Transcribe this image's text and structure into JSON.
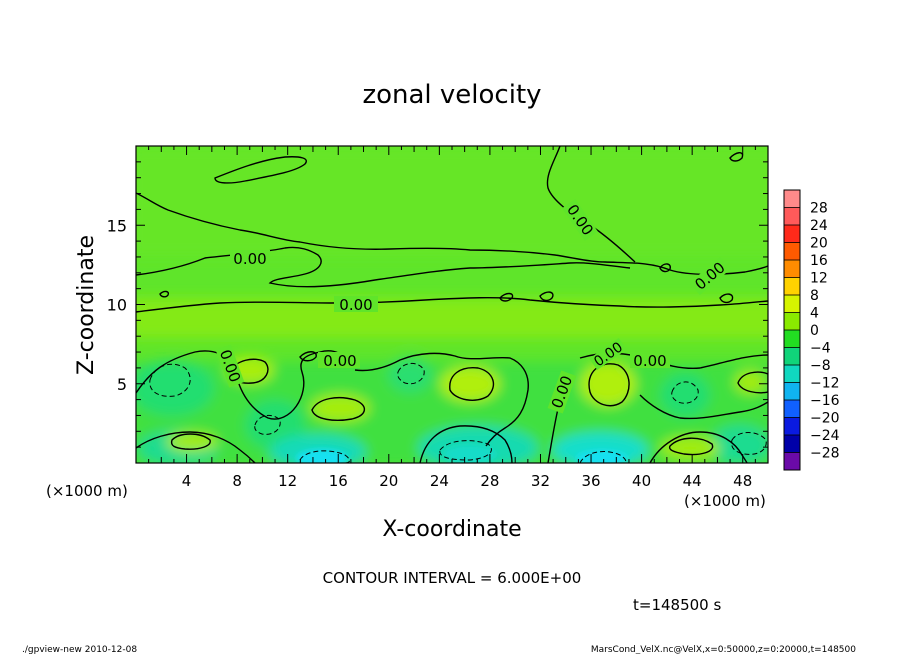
{
  "chart_data": {
    "type": "heatmap",
    "title": "zonal velocity",
    "xlabel": "X-coordinate",
    "ylabel": "Z-coordinate",
    "x_unit_left": "(×1000 m)",
    "x_unit_right": "(×1000 m)",
    "xlim": [
      0,
      50
    ],
    "ylim": [
      0,
      20
    ],
    "x_ticks": [
      "4",
      "8",
      "12",
      "16",
      "20",
      "24",
      "28",
      "32",
      "36",
      "40",
      "44",
      "48"
    ],
    "y_ticks": [
      "5",
      "10",
      "15"
    ],
    "contour_interval_text": "CONTOUR INTERVAL = 6.000E+00",
    "contour_labels": [
      "0.00",
      "0.00",
      "0.00",
      "0.00",
      "0.00",
      "0.00",
      "0.00",
      "0.00",
      "0.00"
    ],
    "time_text": "t=148500 s",
    "colorbar": {
      "labels": [
        "28",
        "24",
        "20",
        "16",
        "12",
        "8",
        "4",
        "0",
        "−4",
        "−8",
        "−12",
        "−16",
        "−20",
        "−24",
        "−28"
      ],
      "colors": [
        "#ff8a8a",
        "#ff5a5a",
        "#ff2a1a",
        "#ff5a00",
        "#ff8c00",
        "#ffd200",
        "#d6f400",
        "#8aea00",
        "#22dd22",
        "#10d47a",
        "#10d8c0",
        "#10b4f0",
        "#1060ff",
        "#0a1ae0",
        "#0000a8",
        "#6a0aa8"
      ]
    },
    "field_colors": {
      "strong_positive": "#b8f000",
      "positive": "#9ceb10",
      "near_zero": "#62e62a",
      "weak_negative": "#22de66",
      "negative": "#12d8b0",
      "strong_negative": "#18e0f2"
    }
  },
  "footer": {
    "left": "./gpview-new   2010-12-08",
    "right": "MarsCond_VelX.nc@VelX,x=0:50000,z=0:20000,t=148500"
  }
}
